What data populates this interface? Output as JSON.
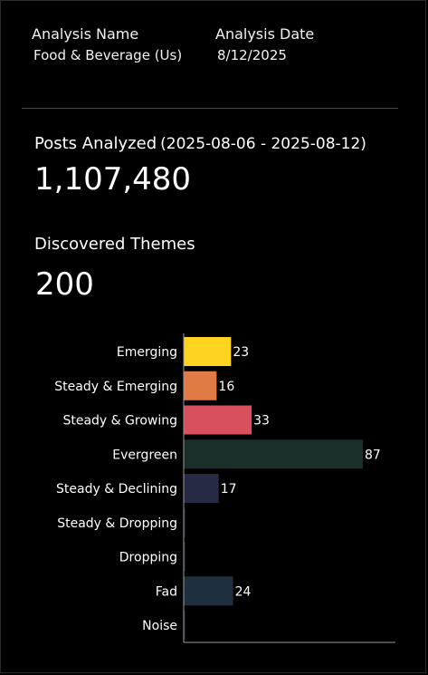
{
  "header": {
    "analysis_name_label": "Analysis Name",
    "analysis_name_value": "Food & Beverage (Us)",
    "analysis_date_label": "Analysis Date",
    "analysis_date_value": "8/12/2025"
  },
  "summary": {
    "posts_label": "Posts Analyzed",
    "posts_range": "(2025-08-06 - 2025-08-12)",
    "posts_value": "1,107,480",
    "themes_label": "Discovered Themes",
    "themes_value": "200"
  },
  "chart_data": {
    "type": "bar",
    "orientation": "horizontal",
    "categories": [
      "Emerging",
      "Steady & Emerging",
      "Steady & Growing",
      "Evergreen",
      "Steady & Declining",
      "Steady & Dropping",
      "Dropping",
      "Fad",
      "Noise"
    ],
    "values": [
      23,
      16,
      33,
      87,
      17,
      0,
      0,
      24,
      0
    ],
    "colors": [
      "#FFD320",
      "#E07B45",
      "#D94F5E",
      "#1A2E2A",
      "#262A45",
      "#1E2A3A",
      "#1E2A3A",
      "#1E3040",
      "#1E2A3A"
    ],
    "data_labels": true,
    "grid": false
  }
}
